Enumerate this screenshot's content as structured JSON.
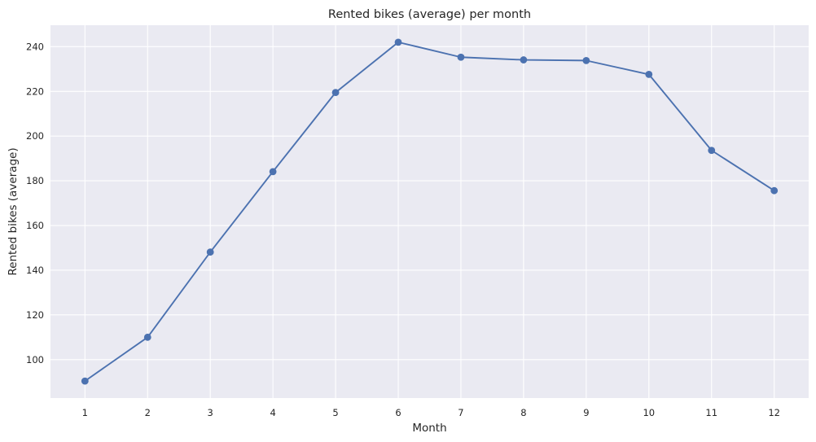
{
  "chart_data": {
    "type": "line",
    "title": "Rented bikes (average) per month",
    "xlabel": "Month",
    "ylabel": "Rented bikes (average)",
    "x": [
      1,
      2,
      3,
      4,
      5,
      6,
      7,
      8,
      9,
      10,
      11,
      12
    ],
    "x_tick_labels": [
      "1",
      "2",
      "3",
      "4",
      "5",
      "6",
      "7",
      "8",
      "9",
      "10",
      "11",
      "12"
    ],
    "series": [
      {
        "values": [
          90.4,
          110.0,
          148.1,
          184.1,
          219.5,
          242.0,
          235.3,
          234.1,
          233.8,
          227.6,
          193.6,
          175.6
        ],
        "color": "#4c72b0",
        "marker": "circle"
      }
    ],
    "y_ticks": [
      100,
      120,
      140,
      160,
      180,
      200,
      220,
      240
    ],
    "y_tick_labels": [
      "100",
      "120",
      "140",
      "160",
      "180",
      "200",
      "220",
      "240"
    ],
    "xlim": [
      0.45,
      12.55
    ],
    "ylim": [
      82.8,
      249.6
    ],
    "grid": true,
    "style": {
      "plot_background": "#eaeaf2",
      "grid_color": "#ffffff",
      "text_color": "#262626"
    }
  }
}
